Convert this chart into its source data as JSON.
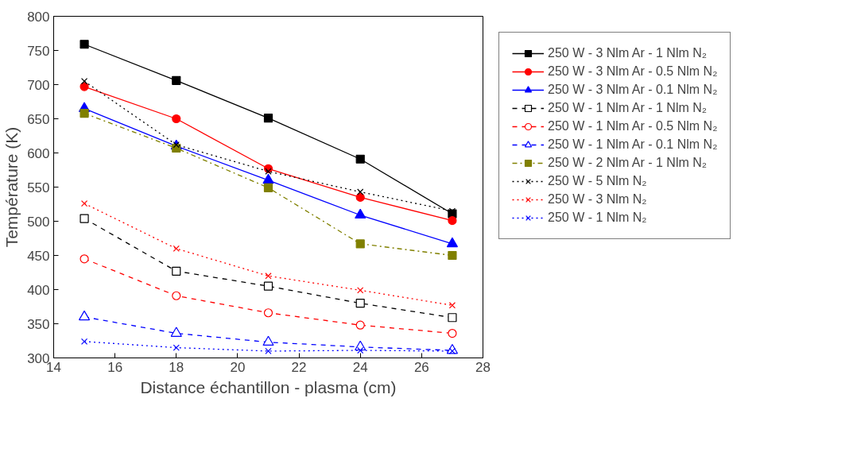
{
  "chart_data": {
    "type": "line",
    "xlabel": "Distance échantillon - plasma (cm)",
    "ylabel": "Température (K)",
    "x": [
      15,
      18,
      21,
      24,
      27
    ],
    "xlim": [
      14,
      28
    ],
    "xticks": [
      14,
      16,
      18,
      20,
      22,
      24,
      26,
      28
    ],
    "ylim": [
      300,
      800
    ],
    "yticks": [
      300,
      350,
      400,
      450,
      500,
      550,
      600,
      650,
      700,
      750,
      800
    ],
    "grid": false,
    "legend": "right",
    "series": [
      {
        "name": "250 W - 3 Nlm Ar - 1 Nlm N₂",
        "color": "#000000",
        "marker": "square",
        "line_style": "solid",
        "values": [
          759,
          706,
          651,
          591,
          511
        ]
      },
      {
        "name": "250 W - 3 Nlm Ar - 0.5 Nlm N₂",
        "color": "#ff0000",
        "marker": "circle",
        "line_style": "solid",
        "values": [
          697,
          650,
          577,
          535,
          501
        ]
      },
      {
        "name": "250 W - 3 Nlm Ar - 0.1 Nlm N₂",
        "color": "#0000ff",
        "marker": "triangle",
        "line_style": "solid",
        "values": [
          665,
          610,
          560,
          509,
          467
        ]
      },
      {
        "name": "250 W - 1 Nlm Ar - 1 Nlm N₂",
        "color": "#000000",
        "marker": "square",
        "line_style": "dashed",
        "values": [
          504,
          427,
          405,
          380,
          359
        ]
      },
      {
        "name": "250 W - 1 Nlm Ar - 0.5 Nlm N₂",
        "color": "#ff0000",
        "marker": "circle",
        "line_style": "dashed",
        "values": [
          445,
          391,
          366,
          348,
          336
        ]
      },
      {
        "name": "250 W - 1 Nlm Ar - 0.1 Nlm N₂",
        "color": "#0000ff",
        "marker": "triangle",
        "line_style": "dashed",
        "values": [
          360,
          336,
          323,
          316,
          311
        ]
      },
      {
        "name": "250 W - 2 Nlm Ar - 1 Nlm N₂",
        "color": "#808000",
        "marker": "square",
        "line_style": "dashdot",
        "values": [
          658,
          607,
          549,
          467,
          450
        ]
      },
      {
        "name": "250 W - 5 Nlm N₂",
        "color": "#000000",
        "marker": "cross",
        "line_style": "dotted",
        "values": [
          705,
          612,
          573,
          543,
          515
        ]
      },
      {
        "name": "250 W - 3 Nlm N₂",
        "color": "#ff0000",
        "marker": "cross",
        "line_style": "dotted",
        "values": [
          526,
          460,
          420,
          399,
          377
        ]
      },
      {
        "name": "250 W - 1 Nlm N₂",
        "color": "#0000ff",
        "marker": "cross",
        "line_style": "dotted",
        "values": [
          324,
          315,
          310,
          311,
          310
        ]
      }
    ]
  }
}
